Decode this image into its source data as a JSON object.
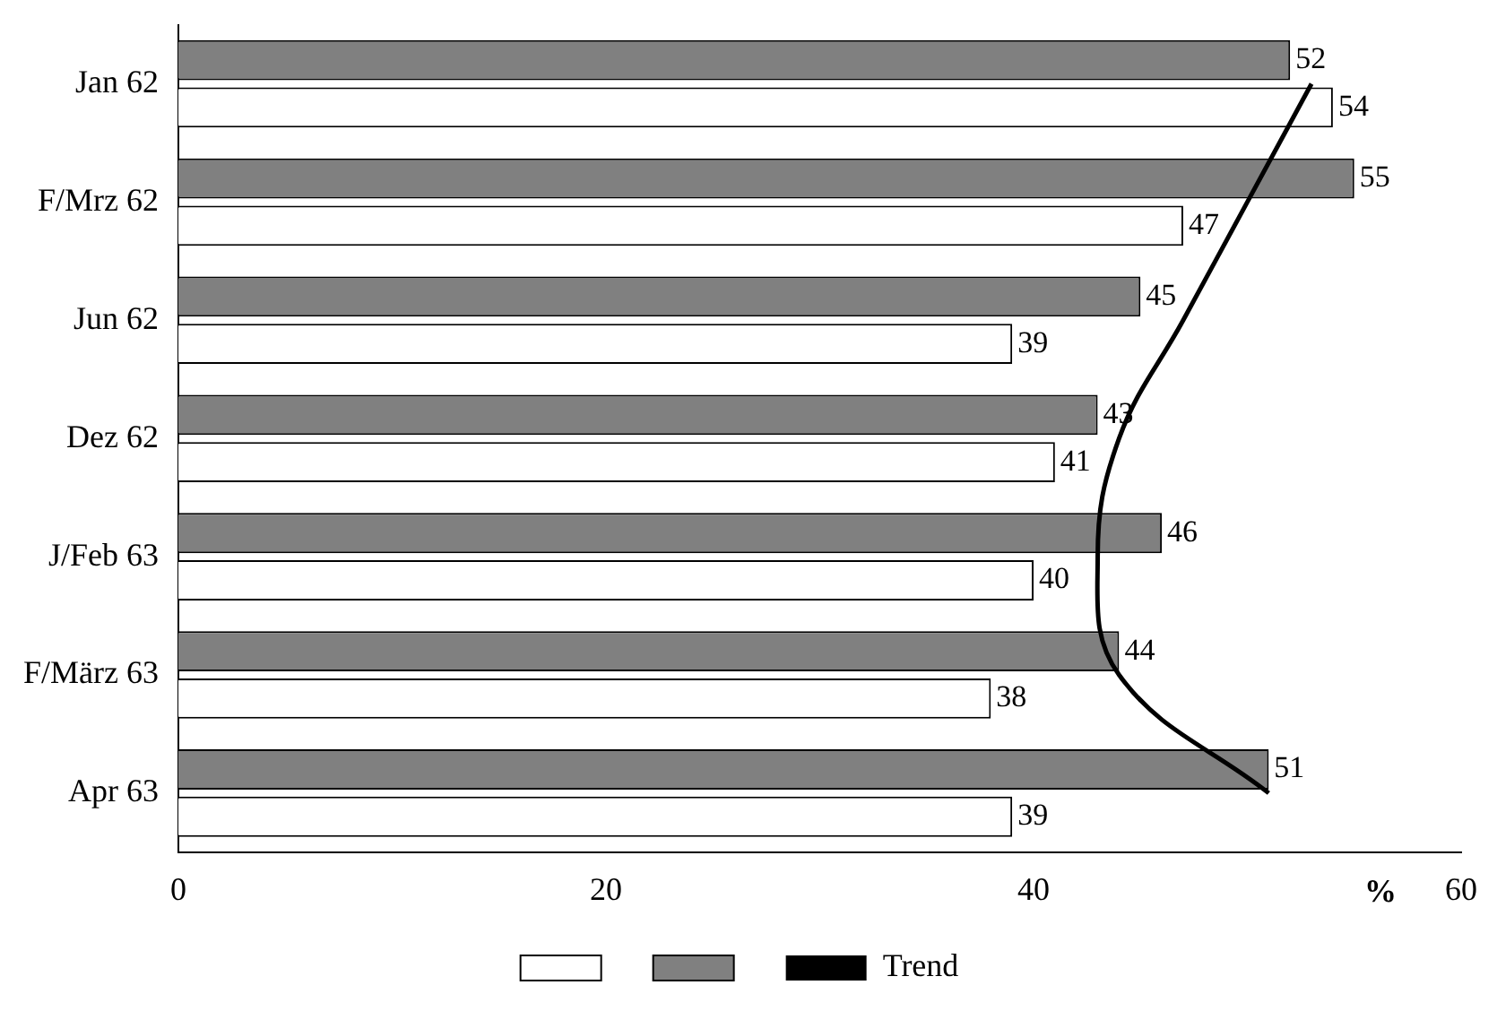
{
  "chart_data": {
    "type": "bar",
    "orientation": "horizontal",
    "xlabel": "%",
    "categories": [
      "Jan 62",
      "F/Mrz 62",
      "Jun 62",
      "Dez 62",
      "J/Feb 63",
      "F/März 63",
      "Apr 63"
    ],
    "series": [
      {
        "color": "#808080",
        "values": [
          52,
          55,
          45,
          43,
          46,
          44,
          51
        ],
        "value_labels": [
          "52",
          "55",
          "45",
          "43",
          "46",
          "44",
          "51"
        ]
      },
      {
        "color": "#ffffff",
        "values": [
          54,
          47,
          39,
          41,
          40,
          38,
          39
        ],
        "value_labels": [
          "54",
          "47",
          "39",
          "41",
          "40",
          "38",
          "39"
        ]
      },
      {
        "type": "line",
        "name": "Trend",
        "color": "#000000",
        "values": [
          53,
          50,
          47,
          44,
          43,
          44,
          51
        ]
      }
    ],
    "xlim": [
      0,
      60
    ],
    "xticks": [
      0,
      20,
      40,
      60
    ],
    "grid": false,
    "legend": "bottom",
    "marker": "none"
  }
}
